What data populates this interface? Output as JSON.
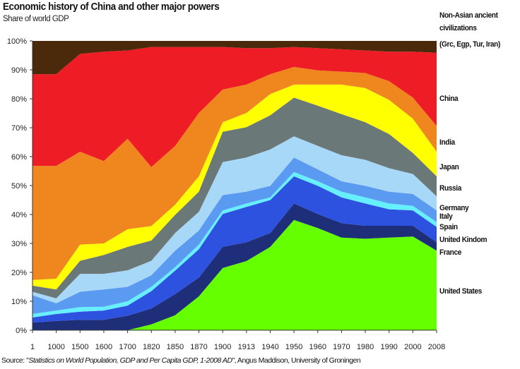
{
  "chart_data": {
    "type": "area",
    "stacked": true,
    "title": "Economic history of China and other major powers",
    "subtitle": "Share of world GDP",
    "ylabel": "",
    "xlabel": "",
    "ylim": [
      0,
      100
    ],
    "y_ticks": [
      "0%",
      "10%",
      "20%",
      "30%",
      "40%",
      "50%",
      "60%",
      "70%",
      "80%",
      "90%",
      "100%"
    ],
    "categories": [
      "1",
      "1000",
      "1500",
      "1600",
      "1700",
      "1820",
      "1850",
      "1870",
      "1900",
      "1913",
      "1940",
      "1950",
      "1960",
      "1970",
      "1980",
      "1990",
      "2000",
      "2008"
    ],
    "legend_placement": "right, inline labels",
    "grid": false,
    "series": [
      {
        "name": "United States",
        "color": "#66ff00",
        "values": [
          0,
          0,
          0,
          0,
          0,
          2,
          5.2,
          11.7,
          21.5,
          23.9,
          28.8,
          38.1,
          35.3,
          32,
          31.6,
          32,
          32.4,
          27.5
        ]
      },
      {
        "name": "France",
        "color": "#1e2e78",
        "values": [
          2.6,
          3.2,
          3.6,
          3.6,
          5,
          5.5,
          7.3,
          6.5,
          7.3,
          6.5,
          4.8,
          5.7,
          4.9,
          5,
          4.5,
          4.1,
          3.7,
          2.9
        ]
      },
      {
        "name": "United Kindom",
        "color": "#2d52e0",
        "values": [
          1.8,
          2.4,
          2.8,
          3.2,
          3.5,
          6,
          8.1,
          9.8,
          11.4,
          12.2,
          11.4,
          9.4,
          9.7,
          8.9,
          7.7,
          5.7,
          5.3,
          5.3
        ]
      },
      {
        "name": "Spain",
        "color": "#66f0ff",
        "values": [
          1.2,
          1.2,
          1.6,
          1.3,
          1.5,
          1.5,
          1.2,
          1.6,
          1.2,
          1.2,
          0.9,
          1.5,
          1.6,
          2,
          2.1,
          2,
          1.6,
          1.7
        ]
      },
      {
        "name": "Italy",
        "color": "#5a9af0",
        "values": [
          6.5,
          2.5,
          5.3,
          6,
          5,
          4,
          5.7,
          4.9,
          5.3,
          4.1,
          4,
          5,
          4.1,
          3.6,
          4,
          4.1,
          4.1,
          4
        ]
      },
      {
        "name": "Germany",
        "color": "#a8d8f8",
        "values": [
          1.2,
          1.7,
          6.2,
          5.4,
          5.7,
          5,
          6.1,
          6.4,
          11.4,
          11.8,
          12.6,
          7.3,
          8.1,
          9,
          9,
          8.1,
          6.9,
          4.9
        ]
      },
      {
        "name": "Russia",
        "color": "#6b7878",
        "values": [
          2.1,
          3.1,
          4.5,
          6.5,
          8.1,
          7,
          6.3,
          7,
          10.5,
          10.5,
          11.8,
          13.4,
          13.9,
          14.2,
          13,
          11.8,
          7.3,
          6.9
        ]
      },
      {
        "name": "Japan",
        "color": "#ffff00",
        "values": [
          2,
          3.7,
          5.6,
          4,
          6.1,
          5,
          3.5,
          5.3,
          3.3,
          4.9,
          7.3,
          4.5,
          7.3,
          10.2,
          11.8,
          11.8,
          11.8,
          8.5
        ]
      },
      {
        "name": "India",
        "color": "#f0871e",
        "values": [
          39.4,
          39,
          32.1,
          28.5,
          31.3,
          20.4,
          20.3,
          21.9,
          11.3,
          9.8,
          6.9,
          6.1,
          4.9,
          4.5,
          5.2,
          6.5,
          7.3,
          8.9
        ]
      },
      {
        "name": "China",
        "color": "#ee1c24",
        "values": [
          31.7,
          31.7,
          33.8,
          37.8,
          30.5,
          41.5,
          34.2,
          22.8,
          14.7,
          12.6,
          9,
          6.9,
          7.7,
          7.7,
          7.8,
          10.2,
          15.9,
          25.3
        ]
      },
      {
        "name": "Non-Asian ancient civilizations (Grc, Egp, Tur, Iran)",
        "color": "#4a2a0a",
        "values": [
          11.5,
          11.5,
          4.5,
          3.7,
          3.3,
          2.1,
          2.1,
          2.1,
          2.1,
          2.5,
          2.5,
          2.1,
          2.5,
          2.9,
          3.3,
          3.7,
          3.7,
          4.1
        ]
      }
    ],
    "labels": {
      "non_asian": [
        "Non-Asian ancient",
        "civilizations",
        "(Grc, Egp, Tur, Iran)"
      ],
      "china": "China",
      "india": "India",
      "japan": "Japan",
      "russia": "Russia",
      "germany": "Germany",
      "italy": "Italy",
      "spain": "Spain",
      "uk": "United Kindom",
      "france": "France",
      "us": "United States"
    }
  },
  "source": {
    "prefix": "Source: \"",
    "title": "Statistics on World Population, GDP and Per Capita GDP, 1-2008 AD",
    "suffix": "\", Angus Maddison, University of Groningen"
  }
}
